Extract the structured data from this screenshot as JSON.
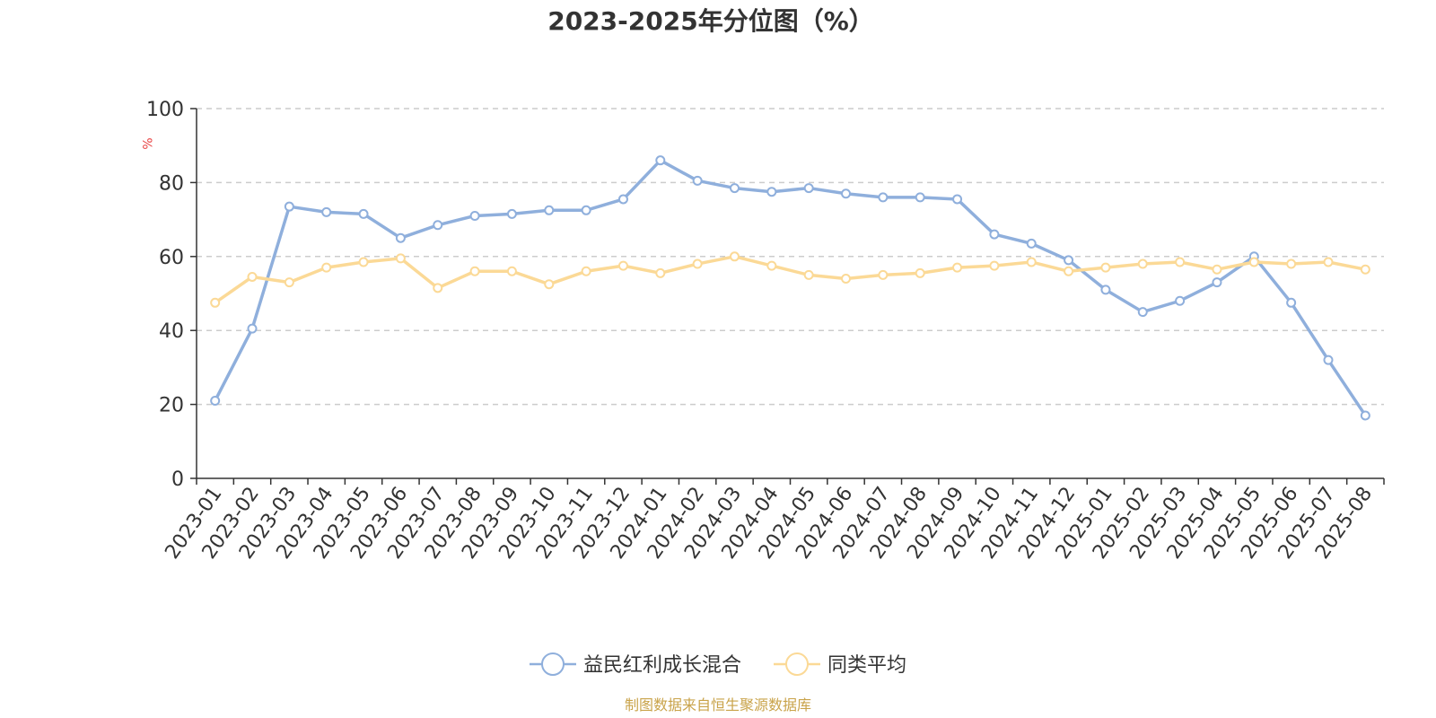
{
  "chart_data": {
    "type": "line",
    "title": "2023-2025年分位图（%）",
    "ylabel": "%",
    "ylim": [
      0,
      100
    ],
    "yticks": [
      "0",
      "20",
      "40",
      "60",
      "80",
      "100"
    ],
    "grid": true,
    "legend_position": "bottom",
    "categories": [
      "2023-01",
      "2023-02",
      "2023-03",
      "2023-04",
      "2023-05",
      "2023-06",
      "2023-07",
      "2023-08",
      "2023-09",
      "2023-10",
      "2023-11",
      "2023-12",
      "2024-01",
      "2024-02",
      "2024-03",
      "2024-04",
      "2024-05",
      "2024-06",
      "2024-07",
      "2024-08",
      "2024-09",
      "2024-10",
      "2024-11",
      "2024-12",
      "2025-01",
      "2025-02",
      "2025-03",
      "2025-04",
      "2025-05",
      "2025-06",
      "2025-07",
      "2025-08"
    ],
    "series": [
      {
        "name": "益民红利成长混合",
        "color": "#8fafdc",
        "values": [
          21,
          40.5,
          73.5,
          72,
          71.5,
          65,
          68.5,
          71,
          71.5,
          72.5,
          72.5,
          75.5,
          86,
          80.5,
          78.5,
          77.5,
          78.5,
          77,
          76,
          76,
          75.5,
          66,
          63.5,
          59,
          51,
          45,
          48,
          53,
          60,
          47.5,
          32,
          17
        ]
      },
      {
        "name": "同类平均",
        "color": "#fbd996",
        "values": [
          47.5,
          54.5,
          53,
          57,
          58.5,
          59.5,
          51.5,
          56,
          56,
          52.5,
          56,
          57.5,
          55.5,
          58,
          60,
          57.5,
          55,
          54,
          55,
          55.5,
          57,
          57.5,
          58.5,
          56,
          57,
          58,
          58.5,
          56.5,
          58.5,
          58,
          58.5,
          56.5
        ]
      }
    ]
  },
  "unit_color": "#e84343",
  "source_note": "制图数据来自恒生聚源数据库",
  "source_color": "#c9a34a"
}
